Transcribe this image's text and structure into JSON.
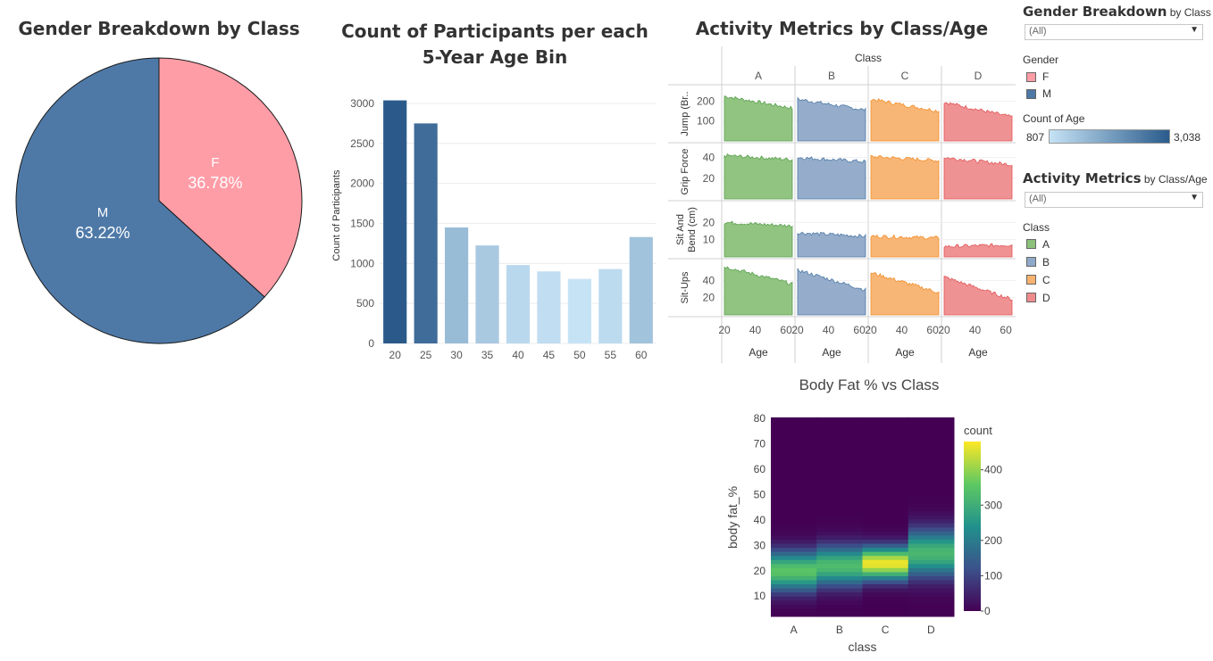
{
  "pie": {
    "title": "Gender Breakdown by Class",
    "chart_data": {
      "type": "pie",
      "slices": [
        {
          "label": "F",
          "pct_label": "36.78%",
          "value": 36.78,
          "color": "#ff9da7"
        },
        {
          "label": "M",
          "pct_label": "63.22%",
          "value": 63.22,
          "color": "#4e79a7"
        }
      ]
    }
  },
  "bar": {
    "title_line1": "Count of Participants per each",
    "title_line2": "5-Year Age Bin",
    "ylabel": "Count of Participants",
    "yticks": [
      "0",
      "500",
      "1000",
      "1500",
      "2000",
      "2500",
      "3000"
    ],
    "chart_data": {
      "type": "bar",
      "categories": [
        "20",
        "25",
        "30",
        "35",
        "40",
        "45",
        "50",
        "55",
        "60"
      ],
      "values": [
        3038,
        2750,
        1450,
        1225,
        980,
        900,
        807,
        930,
        1330
      ],
      "ylim": [
        0,
        3200
      ]
    }
  },
  "activity": {
    "title": "Activity Metrics by Class/Age",
    "column_header": "Class",
    "classes": [
      "A",
      "B",
      "C",
      "D"
    ],
    "metrics": [
      {
        "label": "Jump (Br..",
        "ticks": [
          "200",
          "100"
        ]
      },
      {
        "label": "Grip Force",
        "ticks": [
          "40",
          "20"
        ]
      },
      {
        "label": "Sit And Bend (cm)",
        "label_line1": "Sit And",
        "label_line2": "Bend (cm)",
        "ticks": [
          "20",
          "10"
        ]
      },
      {
        "label": "Sit-Ups",
        "ticks": [
          "40",
          "20"
        ]
      }
    ],
    "xticks": [
      "20",
      "40",
      "60"
    ],
    "xlabel": "Age",
    "chart_data": {
      "type": "area",
      "x_range": [
        20,
        64
      ],
      "class_colors": {
        "A": "#59a14f",
        "B": "#4e79a7",
        "C": "#f28e2b",
        "D": "#e15759"
      },
      "panels": {
        "Jump": {
          "ylim": [
            0,
            260
          ],
          "series": {
            "A": [
              225,
              165
            ],
            "B": [
              210,
              155
            ],
            "C": [
              210,
              150
            ],
            "D": [
              195,
              120
            ]
          }
        },
        "Grip Force": {
          "ylim": [
            0,
            50
          ],
          "series": {
            "A": [
              42,
              38
            ],
            "B": [
              40,
              36
            ],
            "C": [
              41,
              37
            ],
            "D": [
              40,
              33
            ]
          }
        },
        "Sit And Bend": {
          "ylim": [
            0,
            30
          ],
          "series": {
            "A": [
              20,
              18
            ],
            "B": [
              14,
              12
            ],
            "C": [
              12,
              11
            ],
            "D": [
              6,
              7
            ]
          }
        },
        "Sit-Ups": {
          "ylim": [
            0,
            60
          ],
          "series": {
            "A": [
              56,
              36
            ],
            "B": [
              52,
              29
            ],
            "C": [
              49,
              26
            ],
            "D": [
              44,
              18
            ]
          }
        }
      }
    }
  },
  "controls": {
    "gender_title_bold": "Gender Breakdown",
    "gender_title_rest": " by Class",
    "gender_filter": "(All)",
    "gender_legend_title": "Gender",
    "gender_items": [
      {
        "label": "F",
        "color": "#ff9da7"
      },
      {
        "label": "M",
        "color": "#4e79a7"
      }
    ],
    "count_title": "Count of Age",
    "count_min": "807",
    "count_max": "3,038",
    "activity_title_bold": "Activity Metrics",
    "activity_title_rest": " by Class/Age",
    "activity_filter": "(All)",
    "class_legend_title": "Class",
    "class_items": [
      {
        "label": "A",
        "color": "#8cc17a"
      },
      {
        "label": "B",
        "color": "#8fa9c8"
      },
      {
        "label": "C",
        "color": "#f8b26f"
      },
      {
        "label": "D",
        "color": "#ee8c8d"
      }
    ]
  },
  "heatmap": {
    "title": "Body Fat % vs Class",
    "xlabel": "class",
    "ylabel": "body fat_%",
    "colorbar_title": "count",
    "colorbar_ticks": [
      "0",
      "100",
      "200",
      "300",
      "400"
    ],
    "yticks": [
      "10",
      "20",
      "30",
      "40",
      "50",
      "60",
      "70",
      "80"
    ],
    "chart_data": {
      "type": "heatmap",
      "categories": [
        "A",
        "B",
        "C",
        "D"
      ],
      "ylim": [
        2,
        80
      ],
      "zlim": [
        0,
        480
      ],
      "peaks": [
        {
          "class": "A",
          "center": 20,
          "sd": 5.5,
          "max": 350
        },
        {
          "class": "B",
          "center": 22,
          "sd": 5.5,
          "max": 330
        },
        {
          "class": "C",
          "center": 23,
          "sd": 4.5,
          "max": 470
        },
        {
          "class": "D",
          "center": 27,
          "sd": 6.5,
          "max": 320
        }
      ]
    }
  }
}
